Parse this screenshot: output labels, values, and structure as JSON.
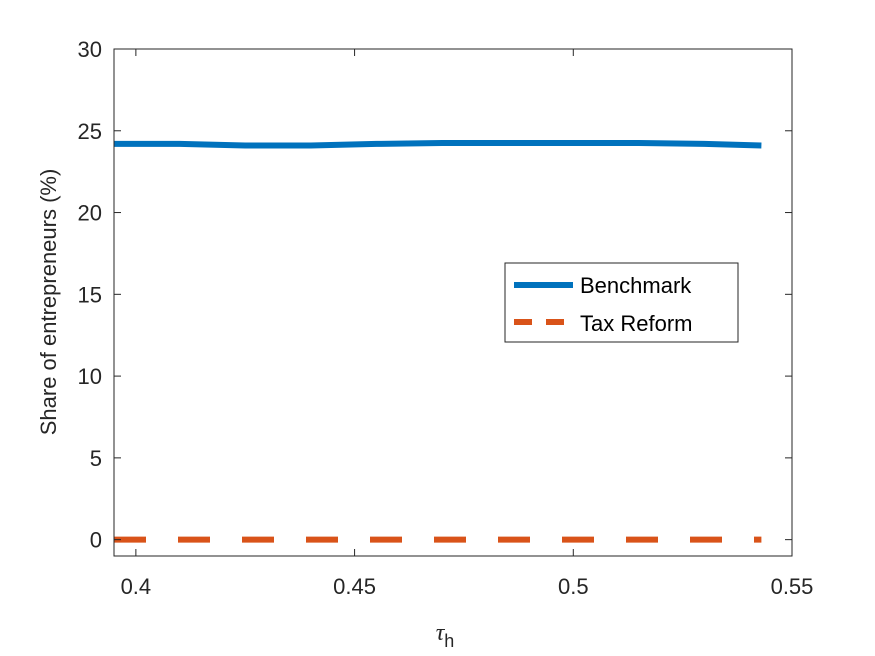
{
  "chart_data": {
    "type": "line",
    "xlabel_symbol": "τ",
    "xlabel_subscript": "h",
    "ylabel": "Share of entrepreneurs (%)",
    "xlim": [
      0.395,
      0.55
    ],
    "ylim": [
      -1,
      30
    ],
    "xticks": [
      0.4,
      0.45,
      0.5,
      0.55
    ],
    "xtick_labels": [
      "0.4",
      "0.45",
      "0.5",
      "0.55"
    ],
    "yticks": [
      0,
      5,
      10,
      15,
      20,
      25,
      30
    ],
    "ytick_labels": [
      "0",
      "5",
      "10",
      "15",
      "20",
      "25",
      "30"
    ],
    "grid": false,
    "legend_position": "center-right",
    "series": [
      {
        "name": "Benchmark",
        "color": "#0072BD",
        "style": "solid",
        "x": [
          0.395,
          0.41,
          0.425,
          0.44,
          0.455,
          0.47,
          0.485,
          0.5,
          0.515,
          0.53,
          0.543
        ],
        "y": [
          24.2,
          24.2,
          24.1,
          24.1,
          24.2,
          24.25,
          24.25,
          24.25,
          24.25,
          24.2,
          24.1
        ]
      },
      {
        "name": "Tax Reform",
        "color": "#D95319",
        "style": "dashed",
        "x": [
          0.395,
          0.543
        ],
        "y": [
          0,
          0
        ]
      }
    ]
  }
}
